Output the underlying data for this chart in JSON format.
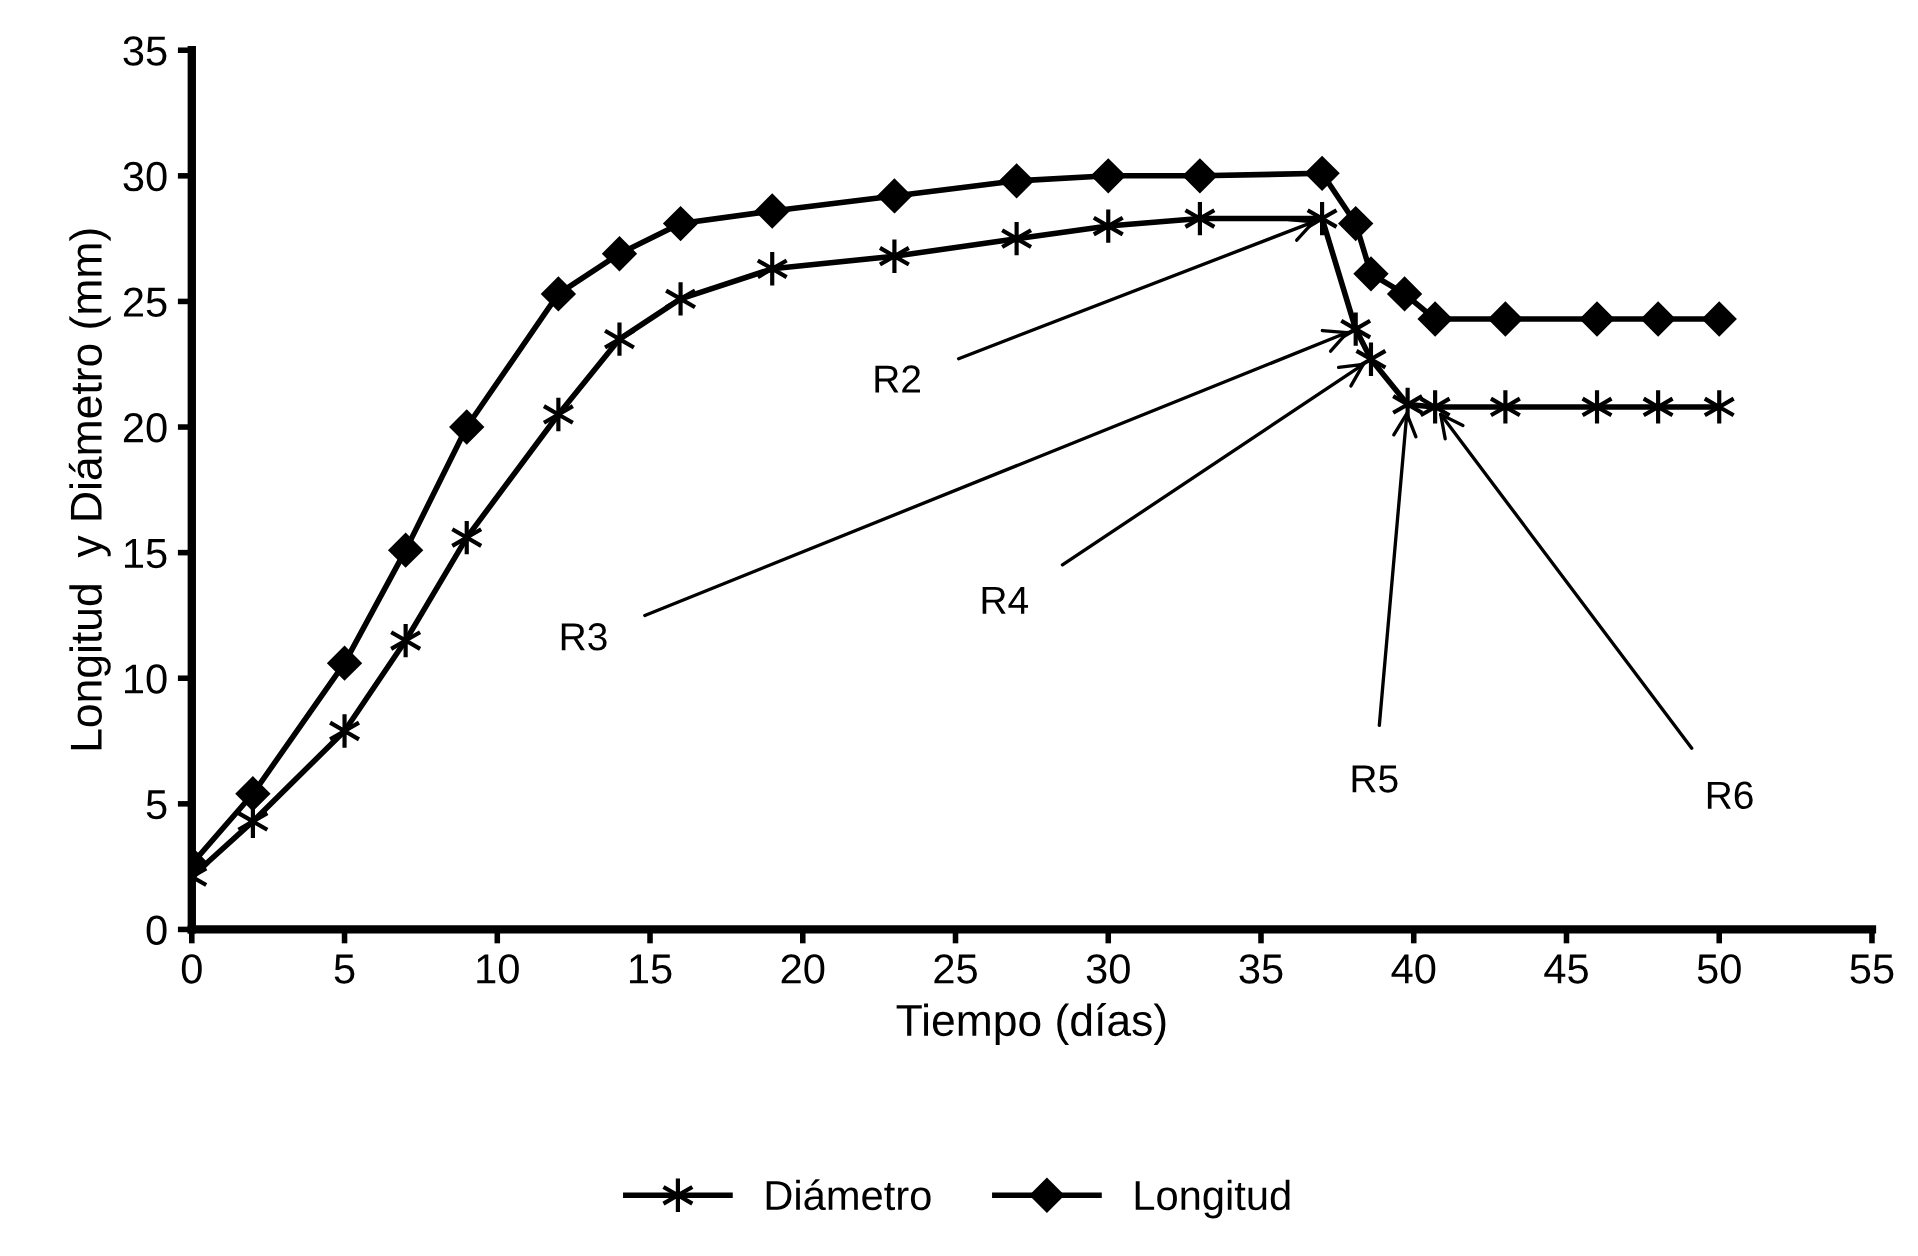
{
  "chart_data": {
    "type": "line",
    "xlabel": "Tiempo (días)",
    "ylabel": "Longitud  y Diámetro (mm)",
    "xlim": [
      0,
      55
    ],
    "xticks": [
      0,
      5,
      10,
      15,
      20,
      25,
      30,
      35,
      40,
      45,
      50,
      55
    ],
    "ylim": [
      0,
      35
    ],
    "yticks": [
      0,
      5,
      10,
      15,
      20,
      25,
      30,
      35
    ],
    "grid": false,
    "legend": "bottom",
    "line_style": "solid",
    "series": [
      {
        "name": "Diámetro",
        "color": "#000000",
        "marker": "cross",
        "x": [
          0,
          2,
          5,
          7,
          9,
          12,
          14,
          16,
          19,
          23,
          27,
          30,
          33,
          37,
          38.1,
          38.6,
          39.8,
          40.7,
          43,
          46,
          48,
          50
        ],
        "values": [
          2.1,
          4.3,
          7.9,
          11.5,
          15.6,
          20.5,
          23.5,
          25.1,
          26.3,
          26.8,
          27.5,
          28.0,
          28.3,
          28.3,
          23.9,
          22.7,
          20.9,
          20.8,
          20.8,
          20.8,
          20.8,
          20.8
        ]
      },
      {
        "name": "Longitud",
        "color": "#000000",
        "marker": "diamond",
        "x": [
          0,
          2,
          5,
          7,
          9,
          12,
          14,
          16,
          19,
          23,
          27,
          30,
          33,
          37,
          38.1,
          38.6,
          39.7,
          40.7,
          43,
          46,
          48,
          50
        ],
        "values": [
          2.6,
          5.4,
          10.6,
          15.1,
          20.0,
          25.3,
          26.9,
          28.1,
          28.6,
          29.2,
          29.8,
          30.0,
          30.0,
          30.1,
          28.1,
          26.1,
          25.3,
          24.3,
          24.3,
          24.3,
          24.3,
          24.3
        ]
      }
    ],
    "annotations": [
      {
        "text": "R2",
        "x": 37,
        "y": 28.3
      },
      {
        "text": "R3",
        "x": 38.1,
        "y": 23.9
      },
      {
        "text": "R4",
        "x": 38.6,
        "y": 22.7
      },
      {
        "text": "R5",
        "x": 39.8,
        "y": 20.9
      },
      {
        "text": "R6",
        "x": 40.7,
        "y": 20.8
      }
    ]
  }
}
